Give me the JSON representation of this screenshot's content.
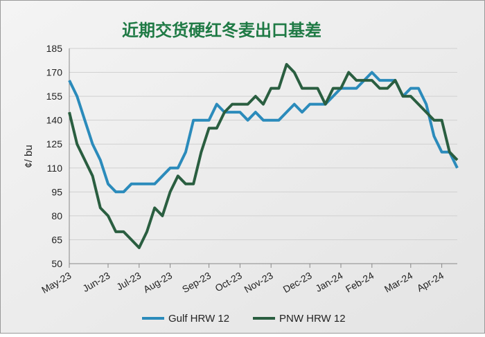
{
  "chart_data": {
    "type": "line",
    "title": "近期交货硬红冬麦出口基差",
    "y_label": "¢/ bu",
    "categories": [
      "May-23",
      null,
      null,
      null,
      null,
      "Jun-23",
      null,
      null,
      null,
      "Jul-23",
      null,
      null,
      null,
      "Aug-23",
      null,
      null,
      null,
      null,
      "Sep-23",
      null,
      null,
      null,
      "Oct-23",
      null,
      null,
      null,
      "Nov-23",
      null,
      null,
      null,
      null,
      "Dec-23",
      null,
      null,
      null,
      "Jan-24",
      null,
      null,
      null,
      "Feb-24",
      null,
      null,
      null,
      null,
      "Mar-24",
      null,
      null,
      null,
      "Apr-24",
      null,
      null
    ],
    "series": [
      {
        "name": "Gulf HRW 12",
        "color": "#2b8bbb",
        "values": [
          165,
          155,
          140,
          125,
          115,
          100,
          95,
          95,
          100,
          100,
          100,
          100,
          105,
          110,
          110,
          120,
          140,
          140,
          140,
          150,
          145,
          145,
          145,
          140,
          145,
          140,
          140,
          140,
          145,
          150,
          145,
          150,
          150,
          150,
          155,
          160,
          160,
          160,
          165,
          170,
          165,
          165,
          165,
          155,
          160,
          160,
          150,
          130,
          120,
          120,
          110
        ]
      },
      {
        "name": "PNW HRW 12",
        "color": "#2a5e40",
        "values": [
          145,
          125,
          115,
          105,
          85,
          80,
          70,
          70,
          65,
          60,
          70,
          85,
          80,
          95,
          105,
          100,
          100,
          120,
          135,
          135,
          145,
          150,
          150,
          150,
          155,
          150,
          160,
          160,
          175,
          170,
          160,
          160,
          160,
          150,
          160,
          160,
          170,
          165,
          165,
          165,
          160,
          160,
          165,
          155,
          155,
          150,
          145,
          140,
          140,
          120,
          115
        ]
      }
    ],
    "ylim": [
      50,
      185
    ],
    "yticks": [
      50,
      65,
      80,
      95,
      110,
      125,
      140,
      155,
      170,
      185
    ],
    "grid": true,
    "legend": "bottom"
  }
}
